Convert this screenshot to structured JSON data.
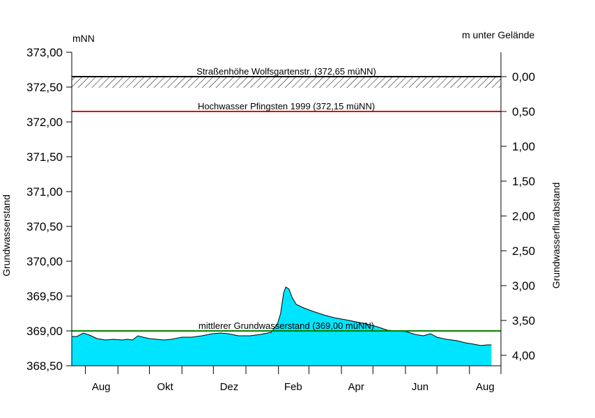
{
  "chart_data": {
    "type": "area",
    "unit_left": "mNN",
    "unit_right": "m unter Gelände",
    "ylabel_left": "Grundwasserstand",
    "ylabel_right": "Grundwasserflurabstand",
    "ylim": [
      368.5,
      373.0
    ],
    "yticks_left": [
      "368,50",
      "369,00",
      "369,50",
      "370,00",
      "370,50",
      "371,00",
      "371,50",
      "372,00",
      "372,50",
      "373,00"
    ],
    "yticks_right": [
      "0,00",
      "0,50",
      "1,00",
      "1,50",
      "2,00",
      "2,50",
      "3,00",
      "3,50",
      "4,00"
    ],
    "ground_level": 372.65,
    "x_months": [
      "Aug",
      "Okt",
      "Dez",
      "Feb",
      "Apr",
      "Jun",
      "Aug"
    ],
    "x_start": "2019-07-19",
    "x_end": "2020-08-31",
    "month_ticks": [
      "2019-08-01",
      "2019-09-01",
      "2019-10-01",
      "2019-11-01",
      "2019-12-01",
      "2020-01-01",
      "2020-02-01",
      "2020-03-01",
      "2020-04-01",
      "2020-05-01",
      "2020-06-01",
      "2020-07-01",
      "2020-08-01"
    ],
    "month_label_dates": [
      "2019-08-16",
      "2019-10-16",
      "2019-12-16",
      "2020-02-15",
      "2020-04-15",
      "2020-06-15",
      "2020-08-16"
    ],
    "reference_lines": [
      {
        "label": "Straßenhöhe Wolfsgartenstr. (372,65 müNN)",
        "value": 372.65,
        "color": "#000000",
        "hatch": true
      },
      {
        "label": "Hochwasser Pfingsten 1999 (372,15 müNN)",
        "value": 372.15,
        "color": "#e00000"
      },
      {
        "label": "mittlerer Grundwasserstand (369,00 müNN)",
        "value": 369.0,
        "color": "#008000"
      }
    ],
    "fill_color": "#00e5ff",
    "series": [
      {
        "x": [
          "2019-07-19",
          "2019-07-24",
          "2019-07-30",
          "2019-08-05",
          "2019-08-12",
          "2019-08-20",
          "2019-08-28",
          "2019-09-05",
          "2019-09-10",
          "2019-09-15",
          "2019-09-20",
          "2019-09-25",
          "2019-10-01",
          "2019-10-08",
          "2019-10-15",
          "2019-10-22",
          "2019-11-01",
          "2019-11-10",
          "2019-11-20",
          "2019-11-30",
          "2019-12-08",
          "2019-12-15",
          "2019-12-25",
          "2020-01-05",
          "2020-01-15",
          "2020-01-25",
          "2020-01-31",
          "2020-02-03",
          "2020-02-06",
          "2020-02-08",
          "2020-02-11",
          "2020-02-14",
          "2020-02-18",
          "2020-02-25",
          "2020-03-05",
          "2020-03-15",
          "2020-03-25",
          "2020-04-05",
          "2020-04-15",
          "2020-04-25",
          "2020-05-05",
          "2020-05-15",
          "2020-05-25",
          "2020-06-02",
          "2020-06-10",
          "2020-06-18",
          "2020-06-25",
          "2020-07-01",
          "2020-07-10",
          "2020-07-20",
          "2020-07-28",
          "2020-08-05",
          "2020-08-12",
          "2020-08-18",
          "2020-08-22"
        ],
        "y": [
          368.92,
          368.92,
          368.97,
          368.94,
          368.89,
          368.87,
          368.88,
          368.87,
          368.88,
          368.87,
          368.93,
          368.91,
          368.89,
          368.88,
          368.87,
          368.88,
          368.91,
          368.91,
          368.93,
          368.96,
          368.97,
          368.96,
          368.93,
          368.93,
          368.95,
          368.98,
          369.1,
          369.25,
          369.55,
          369.63,
          369.6,
          369.48,
          369.38,
          369.33,
          369.28,
          369.23,
          369.19,
          369.16,
          369.13,
          369.1,
          369.06,
          369.01,
          369.0,
          368.99,
          368.95,
          368.93,
          368.96,
          368.91,
          368.88,
          368.86,
          368.83,
          368.81,
          368.79,
          368.8,
          368.8
        ]
      }
    ]
  }
}
